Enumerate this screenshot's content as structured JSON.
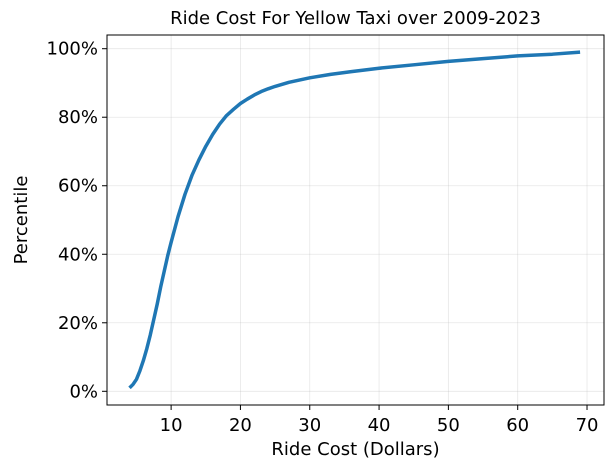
{
  "chart_data": {
    "type": "line",
    "title": "Ride Cost For Yellow Taxi over 2009-2023",
    "xlabel": "Ride Cost (Dollars)",
    "ylabel": "Percentile",
    "xlim": [
      0.75,
      72.45
    ],
    "ylim": [
      -4,
      104
    ],
    "x_ticks": [
      10,
      20,
      30,
      40,
      50,
      60,
      70
    ],
    "x_tick_labels": [
      "10",
      "20",
      "30",
      "40",
      "50",
      "60",
      "70"
    ],
    "y_ticks": [
      0,
      20,
      40,
      60,
      80,
      100
    ],
    "y_tick_labels": [
      "0%",
      "20%",
      "40%",
      "60%",
      "80%",
      "100%"
    ],
    "grid": true,
    "series": [
      {
        "color": "#1f77b4",
        "x": [
          4.0,
          4.5,
          5.0,
          5.5,
          6.0,
          6.5,
          7.0,
          7.5,
          8.0,
          8.5,
          9.0,
          9.5,
          10.0,
          11.0,
          12.0,
          13.0,
          14.0,
          15.0,
          16.0,
          17.0,
          18.0,
          19.0,
          20.0,
          21.0,
          22.0,
          23.0,
          24.0,
          25.0,
          27.0,
          30.0,
          33.0,
          36.0,
          40.0,
          45.0,
          50.0,
          55.0,
          60.0,
          65.0,
          69.0
        ],
        "y": [
          1.0,
          2.0,
          3.5,
          6.0,
          9.0,
          12.5,
          16.5,
          21.0,
          25.5,
          30.5,
          35.0,
          39.5,
          43.5,
          51.0,
          57.5,
          63.0,
          67.5,
          71.5,
          75.0,
          78.0,
          80.5,
          82.3,
          84.0,
          85.3,
          86.5,
          87.5,
          88.3,
          89.0,
          90.2,
          91.5,
          92.5,
          93.3,
          94.3,
          95.3,
          96.3,
          97.1,
          97.9,
          98.4,
          99.0
        ]
      }
    ]
  }
}
